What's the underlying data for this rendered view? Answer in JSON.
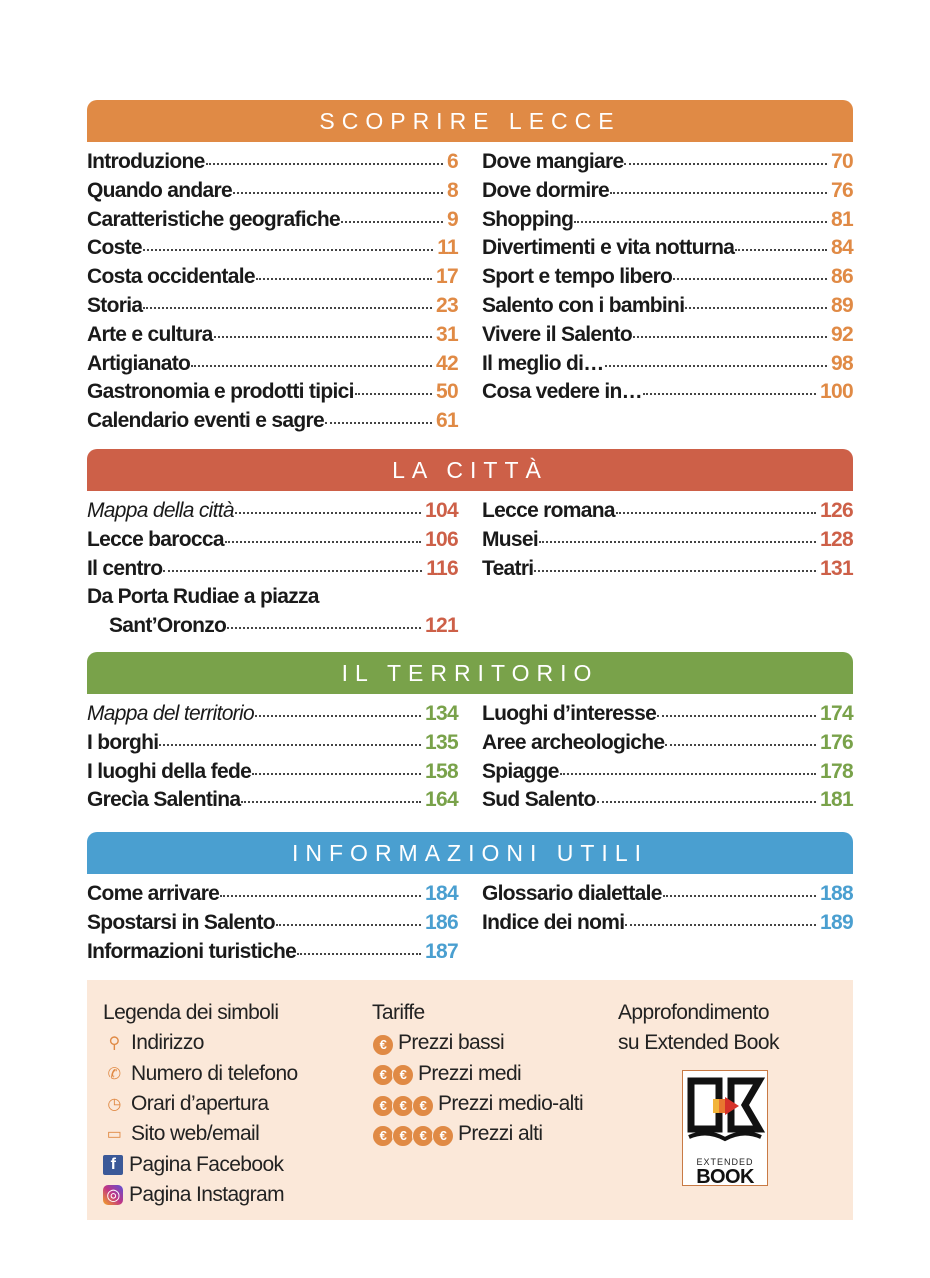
{
  "sections": [
    {
      "title": "SCOPRIRE LECCE",
      "color": "#e08a45",
      "left": [
        {
          "t": "Introduzione",
          "n": "6"
        },
        {
          "t": "Quando andare",
          "n": "8"
        },
        {
          "t": "Caratteristiche geografiche",
          "n": "9"
        },
        {
          "t": "Coste",
          "n": "11"
        },
        {
          "t": "Costa occidentale",
          "n": "17"
        },
        {
          "t": "Storia",
          "n": "23"
        },
        {
          "t": "Arte e cultura",
          "n": "31"
        },
        {
          "t": "Artigianato",
          "n": "42"
        },
        {
          "t": "Gastronomia e prodotti tipici",
          "n": "50"
        },
        {
          "t": "Calendario eventi e sagre",
          "n": "61"
        }
      ],
      "right": [
        {
          "t": "Dove mangiare",
          "n": "70"
        },
        {
          "t": "Dove dormire",
          "n": "76"
        },
        {
          "t": "Shopping",
          "n": "81"
        },
        {
          "t": "Divertimenti e vita notturna",
          "n": "84"
        },
        {
          "t": "Sport e tempo libero",
          "n": "86"
        },
        {
          "t": "Salento con i bambini",
          "n": "89"
        },
        {
          "t": "Vivere il Salento",
          "n": "92"
        },
        {
          "t": "Il meglio di…",
          "n": "98"
        },
        {
          "t": "Cosa vedere in…",
          "n": "100"
        }
      ]
    },
    {
      "title": "LA CITTÀ",
      "color": "#cd6048",
      "left": [
        {
          "t": "Mappa della città",
          "n": "104",
          "italic": true
        },
        {
          "t": "Lecce barocca",
          "n": "106"
        },
        {
          "t": "Il centro",
          "n": "116"
        },
        {
          "t": "Da Porta Rudiae a piazza",
          "n": ""
        },
        {
          "t": "Sant’Oronzo",
          "n": "121",
          "cont": true
        }
      ],
      "right": [
        {
          "t": "Lecce romana",
          "n": "126"
        },
        {
          "t": "Musei",
          "n": "128"
        },
        {
          "t": "Teatri",
          "n": "131"
        }
      ]
    },
    {
      "title": "IL TERRITORIO",
      "color": "#79a24a",
      "left": [
        {
          "t": "Mappa del territorio",
          "n": "134",
          "italic": true
        },
        {
          "t": "I borghi",
          "n": "135"
        },
        {
          "t": "I luoghi della fede",
          "n": "158"
        },
        {
          "t": "Grecìa Salentina",
          "n": "164"
        }
      ],
      "right": [
        {
          "t": "Luoghi d’interesse",
          "n": "174"
        },
        {
          "t": "Aree archeologiche",
          "n": "176"
        },
        {
          "t": "Spiagge",
          "n": "178"
        },
        {
          "t": "Sud Salento",
          "n": "181"
        }
      ]
    },
    {
      "title": "INFORMAZIONI UTILI",
      "color": "#4a9fd0",
      "left": [
        {
          "t": "Come arrivare",
          "n": "184"
        },
        {
          "t": "Spostarsi in Salento",
          "n": "186"
        },
        {
          "t": "Informazioni turistiche",
          "n": "187"
        }
      ],
      "right": [
        {
          "t": "Glossario dialettale",
          "n": "188"
        },
        {
          "t": "Indice dei nomi",
          "n": "189"
        }
      ]
    }
  ],
  "legend": {
    "symbols_title": "Legenda dei simboli",
    "symbols": [
      {
        "icon": "map-pin-icon",
        "label": "Indirizzo"
      },
      {
        "icon": "phone-icon",
        "label": "Numero di telefono"
      },
      {
        "icon": "clock-icon",
        "label": "Orari d’apertura"
      },
      {
        "icon": "laptop-icon",
        "label": "Sito web/email"
      },
      {
        "icon": "facebook-icon",
        "label": "Pagina Facebook"
      },
      {
        "icon": "instagram-icon",
        "label": "Pagina Instagram"
      }
    ],
    "prices_title": "Tariffe",
    "prices": [
      {
        "coins": 1,
        "label": "Prezzi bassi"
      },
      {
        "coins": 2,
        "label": "Prezzi medi"
      },
      {
        "coins": 3,
        "label": "Prezzi medio-alti"
      },
      {
        "coins": 4,
        "label": "Prezzi alti"
      }
    ],
    "extended_title_1": "Approfondimento",
    "extended_title_2": "su Extended Book",
    "logo_text": "EXTENDED BOOK"
  }
}
